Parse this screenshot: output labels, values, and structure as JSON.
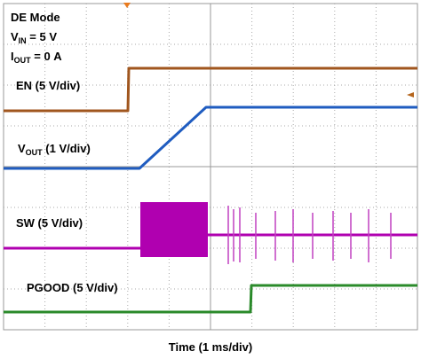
{
  "labels": {
    "mode": "DE Mode",
    "vin": {
      "main": "V",
      "sub": "IN",
      "rest": " = 5 V"
    },
    "iout": {
      "main": "I",
      "sub": "OUT",
      "rest": " = 0 A"
    },
    "en": "EN (5 V/div)",
    "vout": {
      "main": "V",
      "sub": "OUT",
      "rest": " (1 V/div)"
    },
    "sw": "SW (5 V/div)",
    "pgood": "PGOOD (5 V/div)",
    "time": "Time (1 ms/div)"
  }
}
